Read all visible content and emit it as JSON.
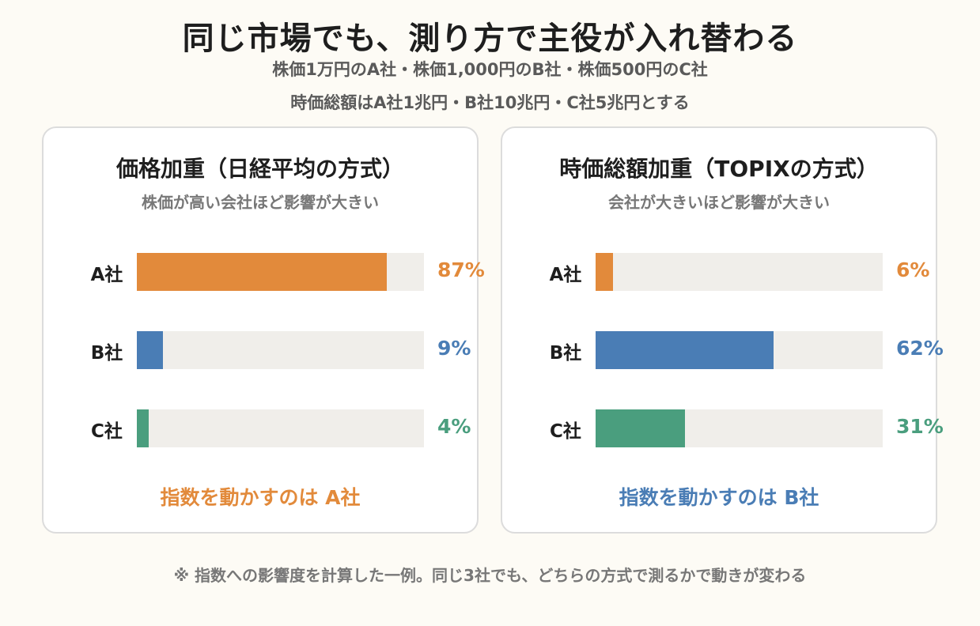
{
  "title": "同じ市場でも、測り方で主役が入れ替わる",
  "subtitle_lines": [
    "株価1万円のA社・株価1,000円のB社・株価500円のC社",
    "時価総額はA社1兆円・B社10兆円・C社5兆円とする"
  ],
  "colors": {
    "A": "#e28a3b",
    "B": "#4a7db5",
    "C": "#4a9e7e",
    "track": "#f0eeea"
  },
  "chart_data": [
    {
      "type": "bar",
      "orientation": "horizontal",
      "title": "価格加重（日経平均の方式）",
      "subtitle": "株価が高い会社ほど影響が大きい",
      "categories": [
        "A社",
        "B社",
        "C社"
      ],
      "values": [
        87,
        9,
        4
      ],
      "value_labels": [
        "87%",
        "9%",
        "4%"
      ],
      "unit": "%",
      "xlim": [
        0,
        100
      ],
      "colors": [
        "#e28a3b",
        "#4a7db5",
        "#4a9e7e"
      ],
      "verdict": "指数を動かすのは A社",
      "verdict_color": "#e28a3b"
    },
    {
      "type": "bar",
      "orientation": "horizontal",
      "title": "時価総額加重（TOPIXの方式）",
      "subtitle": "会社が大きいほど影響が大きい",
      "categories": [
        "A社",
        "B社",
        "C社"
      ],
      "values": [
        6,
        62,
        31
      ],
      "value_labels": [
        "6%",
        "62%",
        "31%"
      ],
      "unit": "%",
      "xlim": [
        0,
        100
      ],
      "colors": [
        "#e28a3b",
        "#4a7db5",
        "#4a9e7e"
      ],
      "verdict": "指数を動かすのは B社",
      "verdict_color": "#4a7db5"
    }
  ],
  "note": "※ 指数への影響度を計算した一例。同じ3社でも、どちらの方式で測るかで動きが変わる"
}
